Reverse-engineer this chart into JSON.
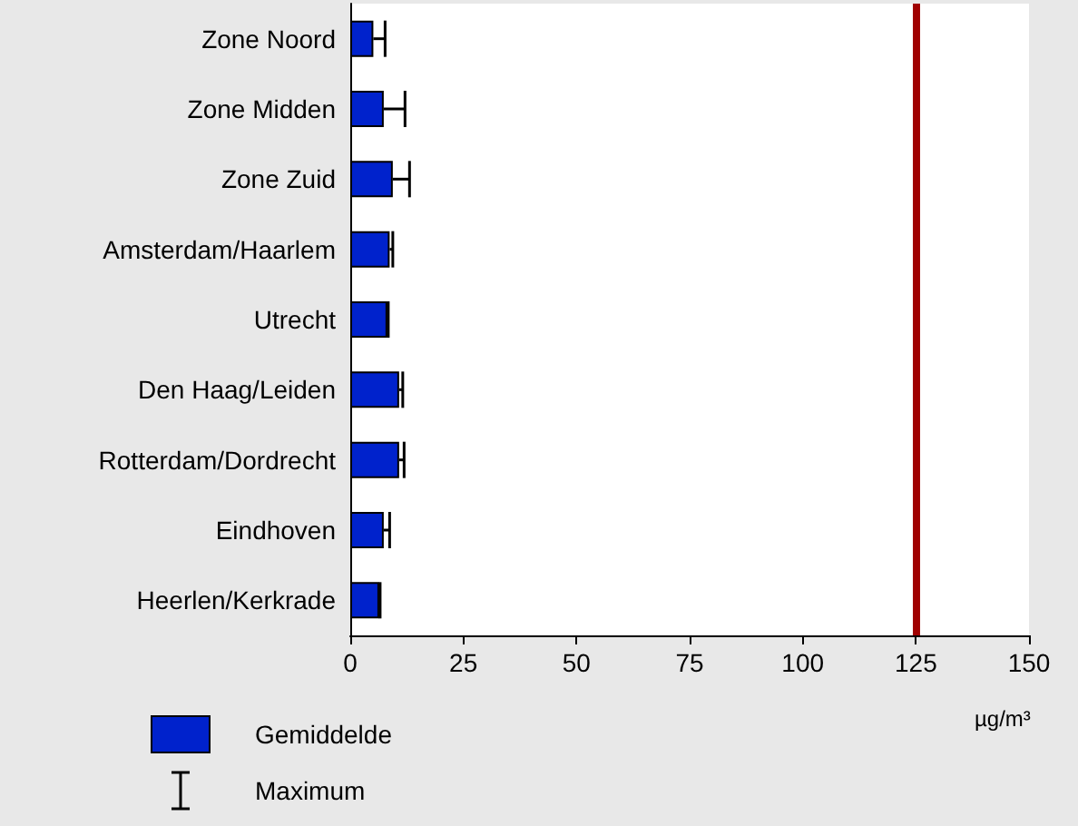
{
  "chart_data": {
    "type": "bar",
    "orientation": "horizontal",
    "xlabel": "µg/m³",
    "categories": [
      "Zone Noord",
      "Zone Midden",
      "Zone Zuid",
      "Amsterdam/Haarlem",
      "Utrecht",
      "Den Haag/Leiden",
      "Rotterdam/Dordrecht",
      "Eindhoven",
      "Heerlen/Kerkrade"
    ],
    "series": [
      {
        "name": "Gemiddelde",
        "color": "#0022cc",
        "values": [
          5.1,
          7.4,
          9.4,
          8.7,
          8.2,
          10.8,
          10.8,
          7.4,
          6.4
        ],
        "errors": [
          [
            5.1,
            7.7
          ],
          [
            7.4,
            12.1
          ],
          [
            9.4,
            13.1
          ],
          [
            8.7,
            9.4
          ],
          [
            8.2,
            8.4
          ],
          [
            10.8,
            11.6
          ],
          [
            10.8,
            11.9
          ],
          [
            7.4,
            8.7
          ],
          [
            6.4,
            6.6
          ]
        ]
      }
    ],
    "annotations": [
      "Maximum"
    ],
    "xlim": [
      0,
      150
    ],
    "xticks": [
      0,
      25,
      50,
      75,
      100,
      125,
      150
    ],
    "ref_lines": [
      {
        "axis": "x",
        "value": 125,
        "color": "#a00000"
      }
    ],
    "legend": "bottom left",
    "grid": false
  }
}
